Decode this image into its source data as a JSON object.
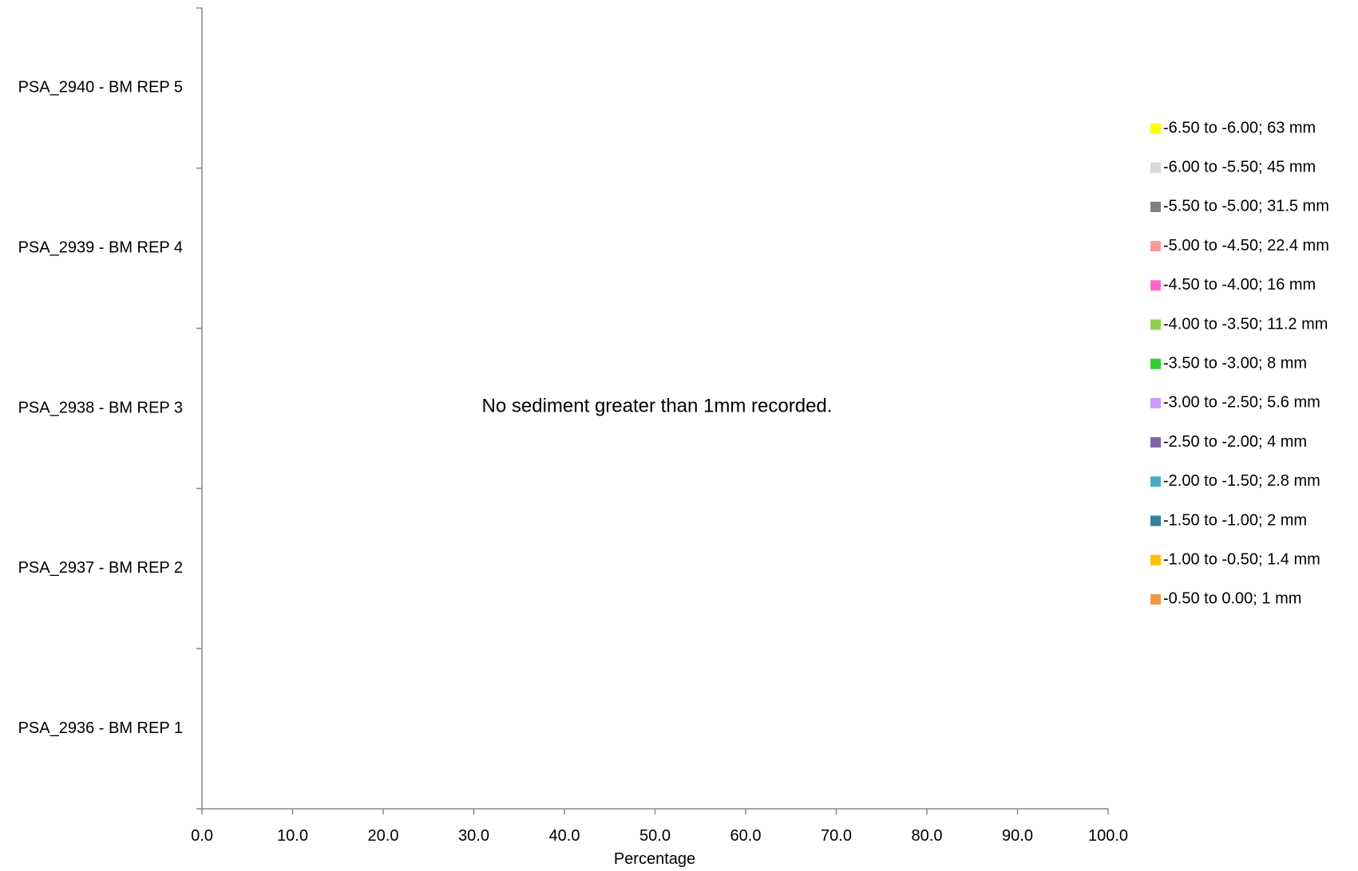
{
  "chart_data": {
    "type": "bar",
    "orientation": "horizontal",
    "stacked": true,
    "title": "",
    "xlabel": "Percentage",
    "ylabel": "",
    "xlim": [
      0,
      100
    ],
    "x_ticks": [
      "0.0",
      "10.0",
      "20.0",
      "30.0",
      "40.0",
      "50.0",
      "60.0",
      "70.0",
      "80.0",
      "90.0",
      "100.0"
    ],
    "categories": [
      "PSA_2936 - BM REP 1",
      "PSA_2937 - BM REP 2",
      "PSA_2938 - BM REP 3",
      "PSA_2939 - BM REP 4",
      "PSA_2940 - BM REP 5"
    ],
    "series": [
      {
        "name": "-6.50 to -6.00; 63 mm",
        "color": "#FFFF00",
        "values": [
          0,
          0,
          0,
          0,
          0
        ]
      },
      {
        "name": "-6.00 to -5.50; 45 mm",
        "color": "#D9D9D9",
        "values": [
          0,
          0,
          0,
          0,
          0
        ]
      },
      {
        "name": "-5.50 to -5.00; 31.5 mm",
        "color": "#808080",
        "values": [
          0,
          0,
          0,
          0,
          0
        ]
      },
      {
        "name": "-5.00 to -4.50; 22.4 mm",
        "color": "#FF9999",
        "values": [
          0,
          0,
          0,
          0,
          0
        ]
      },
      {
        "name": "-4.50 to -4.00; 16 mm",
        "color": "#FF66CC",
        "values": [
          0,
          0,
          0,
          0,
          0
        ]
      },
      {
        "name": "-4.00 to -3.50; 11.2 mm",
        "color": "#92D050",
        "values": [
          0,
          0,
          0,
          0,
          0
        ]
      },
      {
        "name": "-3.50 to -3.00; 8 mm",
        "color": "#33CC33",
        "values": [
          0,
          0,
          0,
          0,
          0
        ]
      },
      {
        "name": "-3.00 to -2.50; 5.6 mm",
        "color": "#CC99FF",
        "values": [
          0,
          0,
          0,
          0,
          0
        ]
      },
      {
        "name": "-2.50 to -2.00; 4 mm",
        "color": "#8064A2",
        "values": [
          0,
          0,
          0,
          0,
          0
        ]
      },
      {
        "name": "-2.00 to -1.50; 2.8 mm",
        "color": "#4BACC6",
        "values": [
          0,
          0,
          0,
          0,
          0
        ]
      },
      {
        "name": "-1.50 to -1.00; 2 mm",
        "color": "#31849B",
        "values": [
          0,
          0,
          0,
          0,
          0
        ]
      },
      {
        "name": "-1.00 to -0.50; 1.4 mm",
        "color": "#FFC000",
        "values": [
          0,
          0,
          0,
          0,
          0
        ]
      },
      {
        "name": "-0.50 to 0.00; 1 mm",
        "color": "#F79646",
        "values": [
          0,
          0,
          0,
          0,
          0
        ]
      }
    ],
    "legend_position": "right",
    "grid": false,
    "annotation": "No sediment greater than 1mm recorded.",
    "axis_color": "#868686"
  }
}
